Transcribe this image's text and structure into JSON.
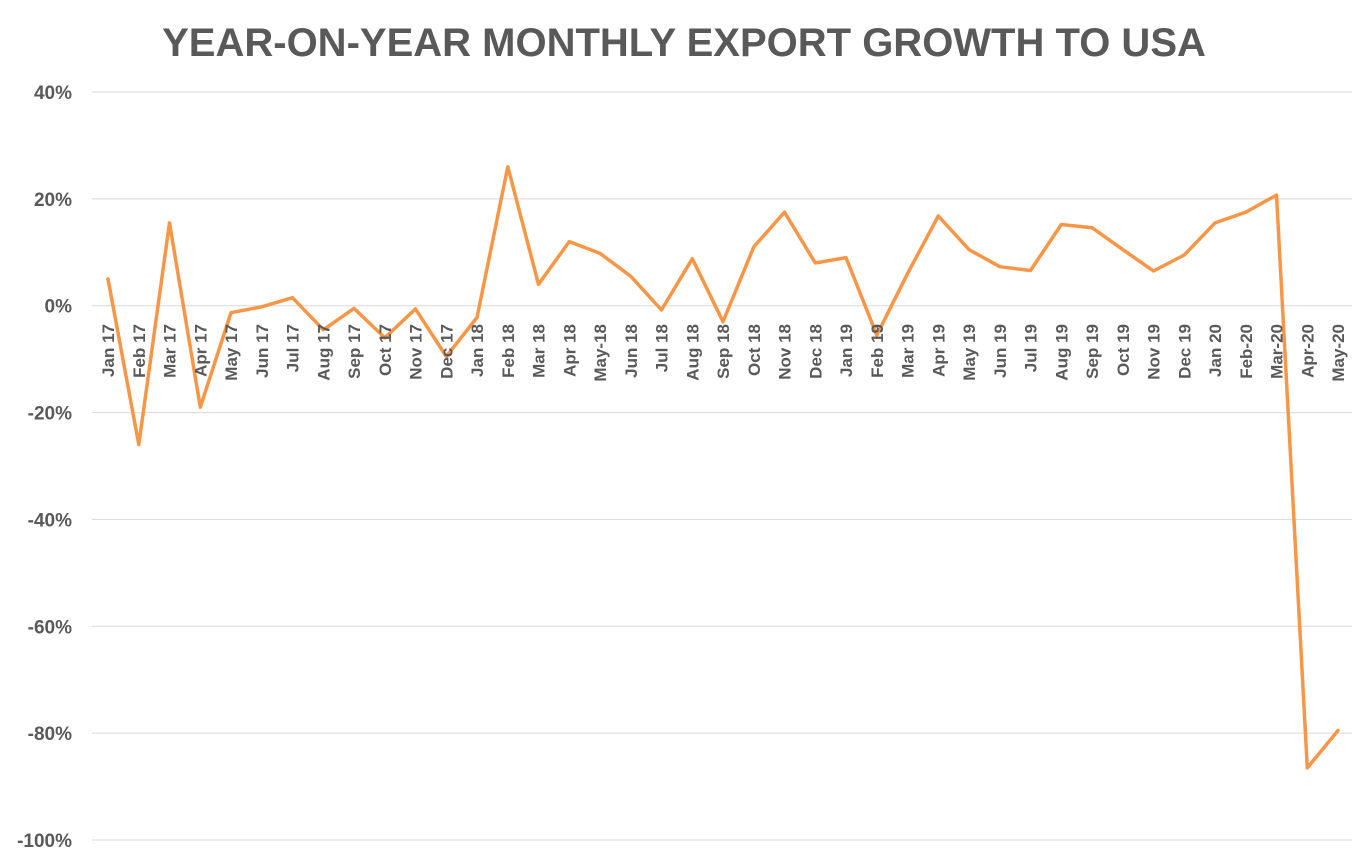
{
  "chart_data": {
    "type": "line",
    "title": "YEAR-ON-YEAR MONTHLY EXPORT GROWTH TO USA",
    "xlabel": "",
    "ylabel": "",
    "ylim": [
      -100,
      40
    ],
    "yticks": [
      40,
      20,
      0,
      -20,
      -40,
      -60,
      -80,
      -100
    ],
    "ytick_labels": [
      "40%",
      "20%",
      "0%",
      "-20%",
      "-40%",
      "-60%",
      "-80%",
      "-100%"
    ],
    "grid": true,
    "legend": "none",
    "series_color": "#f79646",
    "categories": [
      "Jan 17",
      "Feb 17",
      "Mar 17",
      "Apr 17",
      "May 17",
      "Jun 17",
      "Jul 17",
      "Aug 17",
      "Sep 17",
      "Oct 17",
      "Nov 17",
      "Dec 17",
      "Jan 18",
      "Feb 18",
      "Mar 18",
      "Apr 18",
      "May-18",
      "Jun 18",
      "Jul 18",
      "Aug 18",
      "Sep 18",
      "Oct 18",
      "Nov 18",
      "Dec 18",
      "Jan 19",
      "Feb 19",
      "Mar 19",
      "Apr 19",
      "May 19",
      "Jun 19",
      "Jul 19",
      "Aug 19",
      "Sep 19",
      "Oct 19",
      "Nov 19",
      "Dec 19",
      "Jan 20",
      "Feb-20",
      "Mar-20",
      "Apr-20",
      "May-20"
    ],
    "series": [
      {
        "values": [
          5,
          -26,
          15.5,
          -19,
          -1.3,
          -0.2,
          1.5,
          -4.5,
          -0.5,
          -6,
          -0.6,
          -9.5,
          -2.2,
          26,
          4,
          12,
          9.8,
          5.5,
          -0.8,
          8.8,
          -3,
          11,
          17.5,
          8,
          9,
          -5.5,
          6,
          16.8,
          10.5,
          7.3,
          6.6,
          15.2,
          14.6,
          10.5,
          6.5,
          9.5,
          15.5,
          17.5,
          20.7,
          -86.5,
          -79.5
        ]
      }
    ]
  }
}
